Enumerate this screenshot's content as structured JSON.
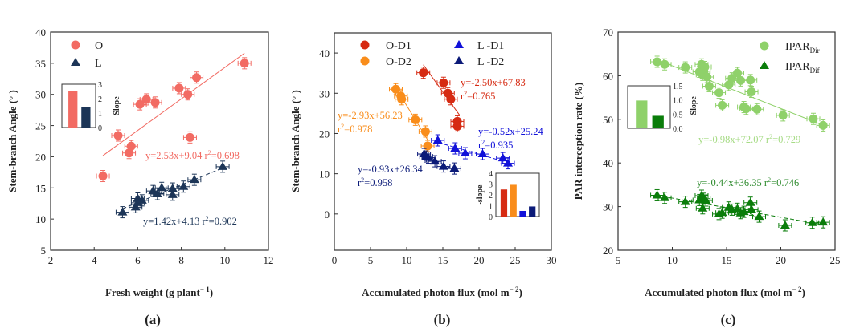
{
  "chart_data": [
    {
      "id": "a",
      "type": "scatter",
      "panel_label": "(a)",
      "xlabel": "Fresh weight (g plant⁻¹)",
      "xlabel_main": "Fresh weight (g plant",
      "xlabel_sup": "− 1",
      "xlabel_end": ")",
      "ylabel": "Stem-branch Angle (° )",
      "xlim": [
        2,
        12
      ],
      "ylim": [
        5,
        40
      ],
      "xticks": [
        2,
        4,
        6,
        8,
        10,
        12
      ],
      "yticks": [
        5,
        10,
        15,
        20,
        25,
        30,
        35,
        40
      ],
      "legend": [
        {
          "name": "O",
          "marker": "circle",
          "color": "#f26b63"
        },
        {
          "name": "L",
          "marker": "triangle",
          "color": "#1c3557"
        }
      ],
      "series": [
        {
          "name": "O",
          "marker": "circle",
          "color": "#f26b63",
          "points": [
            [
              4.4,
              16.9
            ],
            [
              5.1,
              23.4
            ],
            [
              5.6,
              20.6
            ],
            [
              5.7,
              21.7
            ],
            [
              6.1,
              28.4
            ],
            [
              6.4,
              29.2
            ],
            [
              6.8,
              28.7
            ],
            [
              8.4,
              23.1
            ],
            [
              7.9,
              31.0
            ],
            [
              8.3,
              30.0
            ],
            [
              8.7,
              32.7
            ],
            [
              10.9,
              35.0
            ]
          ],
          "fit": {
            "slope": 2.53,
            "intercept": 9.04,
            "x0": 4.4,
            "x1": 10.9,
            "style": "solid"
          },
          "equation": "y=2.53x+9.04 r²=0.698",
          "eq_main": "y=2.53x+9.04 r",
          "eq_sup": "2",
          "eq_end": "=0.698"
        },
        {
          "name": "L",
          "marker": "triangle",
          "color": "#1c3557",
          "points": [
            [
              5.3,
              11.1
            ],
            [
              5.9,
              11.9
            ],
            [
              6.0,
              13.3
            ],
            [
              6.0,
              12.6
            ],
            [
              6.2,
              13.0
            ],
            [
              6.7,
              14.5
            ],
            [
              6.9,
              14.0
            ],
            [
              7.1,
              15.0
            ],
            [
              7.6,
              14.9
            ],
            [
              7.6,
              13.9
            ],
            [
              8.1,
              15.2
            ],
            [
              8.6,
              16.3
            ],
            [
              9.9,
              18.4
            ]
          ],
          "fit": {
            "slope": 1.42,
            "intercept": 4.13,
            "x0": 5.3,
            "x1": 9.9,
            "style": "dashed"
          },
          "equation": "y=1.42x+4.13 r²=0.902",
          "eq_main": "y=1.42x+4.13 r",
          "eq_sup": "2",
          "eq_end": "=0.902"
        }
      ],
      "inset": {
        "type": "bar",
        "ylabel": "Slope",
        "ylim": [
          0,
          3
        ],
        "yticks": [
          0,
          1,
          2,
          3
        ],
        "categories": [
          "O",
          "L"
        ],
        "values": [
          2.53,
          1.42
        ],
        "colors": [
          "#f26b63",
          "#1c3557"
        ]
      }
    },
    {
      "id": "b",
      "type": "scatter",
      "panel_label": "(b)",
      "xlabel": "Accumulated photon flux (mol m⁻²)",
      "xlabel_main": "Accumulated photon flux (mol m",
      "xlabel_sup": "− 2",
      "xlabel_end": ")",
      "ylabel": "Stem-branch Angle (° )",
      "xlim": [
        0,
        30
      ],
      "ylim": [
        -9,
        45
      ],
      "xticks": [
        0,
        5,
        10,
        15,
        20,
        25,
        30
      ],
      "yticks": [
        0,
        10,
        20,
        30,
        40
      ],
      "legend": [
        {
          "name": "O-D1",
          "marker": "circle",
          "color": "#d62a12"
        },
        {
          "name": "O-D2",
          "marker": "circle",
          "color": "#f98d1b"
        },
        {
          "name": "L -D1",
          "marker": "triangle",
          "color": "#1111d9"
        },
        {
          "name": "L -D2",
          "marker": "triangle",
          "color": "#0b1a78"
        }
      ],
      "series": [
        {
          "name": "O-D1",
          "marker": "circle",
          "color": "#d62a12",
          "points": [
            [
              12.3,
              35.1
            ],
            [
              15.1,
              32.6
            ],
            [
              15.7,
              30.0
            ],
            [
              16.1,
              28.5
            ],
            [
              17.0,
              23.0
            ],
            [
              17.0,
              21.8
            ]
          ],
          "fit": {
            "slope": -2.5,
            "intercept": 67.83,
            "x0": 12.3,
            "x1": 17.3,
            "style": "solid"
          },
          "equation_line1": "y=-2.50x+67.83",
          "equation_line2_main": "r",
          "equation_line2_sup": "2",
          "equation_line2_end": "=0.765"
        },
        {
          "name": "O-D2",
          "marker": "circle",
          "color": "#f98d1b",
          "points": [
            [
              8.5,
              31.0
            ],
            [
              9.2,
              29.3
            ],
            [
              9.3,
              28.5
            ],
            [
              11.2,
              23.4
            ],
            [
              12.6,
              20.5
            ],
            [
              12.9,
              16.9
            ]
          ],
          "fit": {
            "slope": -2.93,
            "intercept": 56.23,
            "x0": 8.5,
            "x1": 12.9,
            "style": "solid"
          },
          "equation_line1": "y=-2.93x+56.23",
          "equation_line2_main": "r",
          "equation_line2_sup": "2",
          "equation_line2_end": "=0.978"
        },
        {
          "name": "L -D1",
          "marker": "triangle",
          "color": "#1111d9",
          "points": [
            [
              14.3,
              18.3
            ],
            [
              16.7,
              16.3
            ],
            [
              18.1,
              15.1
            ],
            [
              20.5,
              14.9
            ],
            [
              23.3,
              13.9
            ],
            [
              24.0,
              12.6
            ]
          ],
          "fit": {
            "slope": -0.52,
            "intercept": 25.24,
            "x0": 14.3,
            "x1": 24.0,
            "style": "dashed"
          },
          "equation_line1": "y=-0.52x+25.24",
          "equation_line2_main": "r",
          "equation_line2_sup": "2",
          "equation_line2_end": "=0.935"
        },
        {
          "name": "L -D2",
          "marker": "triangle",
          "color": "#0b1a78",
          "points": [
            [
              12.4,
              14.9
            ],
            [
              12.7,
              14.3
            ],
            [
              13.0,
              14.0
            ],
            [
              13.9,
              13.1
            ],
            [
              15.1,
              11.8
            ],
            [
              16.6,
              11.3
            ]
          ],
          "fit": {
            "slope": -0.93,
            "intercept": 26.34,
            "x0": 12.4,
            "x1": 16.6,
            "style": "dashed"
          },
          "equation_line1": "y=-0.93x+26.34",
          "equation_line2_main": "r",
          "equation_line2_sup": "2",
          "equation_line2_end": "=0.958"
        }
      ],
      "inset": {
        "type": "bar",
        "ylabel": "-slope",
        "ylim": [
          0,
          4
        ],
        "yticks": [
          0,
          1,
          2,
          3,
          4
        ],
        "categories": [
          "O-D1",
          "O-D2",
          "L -D1",
          "L -D2"
        ],
        "values": [
          2.5,
          2.93,
          0.52,
          0.93
        ],
        "colors": [
          "#d62a12",
          "#f98d1b",
          "#1111d9",
          "#0b1a78"
        ]
      }
    },
    {
      "id": "c",
      "type": "scatter",
      "panel_label": "(c)",
      "xlabel": "Accumulated photon flux (mol m⁻²)",
      "xlabel_main": "Accumulated photon flux (mol m",
      "xlabel_sup": "− 2",
      "xlabel_end": ")",
      "ylabel": "PAR interception rate (%)",
      "xlim": [
        5,
        25
      ],
      "ylim": [
        20,
        70
      ],
      "xticks": [
        5,
        10,
        15,
        20,
        25
      ],
      "yticks": [
        20,
        30,
        40,
        50,
        60,
        70
      ],
      "legend": [
        {
          "name_main": "IPAR",
          "name_sub": "Dir",
          "marker": "circle",
          "color": "#8fd16a"
        },
        {
          "name_main": "IPAR",
          "name_sub": "Dif",
          "marker": "triangle",
          "color": "#0a7d0a"
        }
      ],
      "series": [
        {
          "name": "IPAR_Dir",
          "marker": "circle",
          "color": "#8fd16a",
          "points": [
            [
              8.6,
              63.2
            ],
            [
              9.3,
              62.6
            ],
            [
              11.2,
              61.9
            ],
            [
              12.5,
              60.9
            ],
            [
              12.7,
              62.6
            ],
            [
              12.9,
              61.0
            ],
            [
              12.8,
              60.2
            ],
            [
              13.0,
              62.0
            ],
            [
              13.2,
              59.7
            ],
            [
              13.4,
              57.6
            ],
            [
              14.3,
              56.1
            ],
            [
              14.6,
              53.2
            ],
            [
              15.2,
              57.9
            ],
            [
              15.5,
              59.4
            ],
            [
              16.0,
              60.6
            ],
            [
              16.3,
              58.9
            ],
            [
              16.6,
              52.8
            ],
            [
              16.8,
              52.4
            ],
            [
              17.2,
              59.0
            ],
            [
              17.3,
              56.3
            ],
            [
              17.8,
              52.3
            ],
            [
              20.2,
              50.9
            ],
            [
              23.0,
              50.1
            ],
            [
              23.9,
              48.6
            ]
          ],
          "fit": {
            "slope": -0.98,
            "intercept": 72.07,
            "x0": 8.6,
            "x1": 23.9,
            "style": "solid"
          },
          "equation": "y=-0.98x+72.07 r²=0.729",
          "eq_main": "y=-0.98x+72.07 r",
          "eq_sup": "2",
          "eq_end": "=0.729"
        },
        {
          "name": "IPAR_Dif",
          "marker": "triangle",
          "color": "#0a7d0a",
          "points": [
            [
              8.6,
              32.6
            ],
            [
              9.3,
              32.0
            ],
            [
              11.2,
              31.1
            ],
            [
              12.5,
              31.5
            ],
            [
              12.7,
              32.5
            ],
            [
              12.9,
              31.8
            ],
            [
              12.8,
              29.6
            ],
            [
              13.1,
              31.4
            ],
            [
              14.3,
              28.3
            ],
            [
              14.6,
              28.6
            ],
            [
              15.2,
              29.8
            ],
            [
              15.5,
              29.3
            ],
            [
              16.0,
              29.5
            ],
            [
              16.3,
              28.5
            ],
            [
              16.6,
              28.8
            ],
            [
              17.2,
              30.9
            ],
            [
              17.3,
              29.3
            ],
            [
              18.0,
              27.7
            ],
            [
              20.4,
              25.7
            ],
            [
              22.9,
              26.3
            ],
            [
              23.9,
              26.4
            ]
          ],
          "fit": {
            "slope": -0.44,
            "intercept": 36.35,
            "x0": 8.6,
            "x1": 23.9,
            "style": "dashed"
          },
          "equation": "y=-0.44x+36.35 r²=0.746",
          "eq_main": "y=-0.44x+36.35 r",
          "eq_sup": "2",
          "eq_end": "=0.746"
        }
      ],
      "inset": {
        "type": "bar",
        "ylabel": "-Slope",
        "ylim": [
          0,
          1.5
        ],
        "yticks": [
          "0.0",
          "0.5",
          "1.0",
          "1.5"
        ],
        "categories": [
          "IPAR_Dir",
          "IPAR_Dif"
        ],
        "values": [
          0.98,
          0.44
        ],
        "colors": [
          "#8fd16a",
          "#0a7d0a"
        ]
      }
    }
  ]
}
